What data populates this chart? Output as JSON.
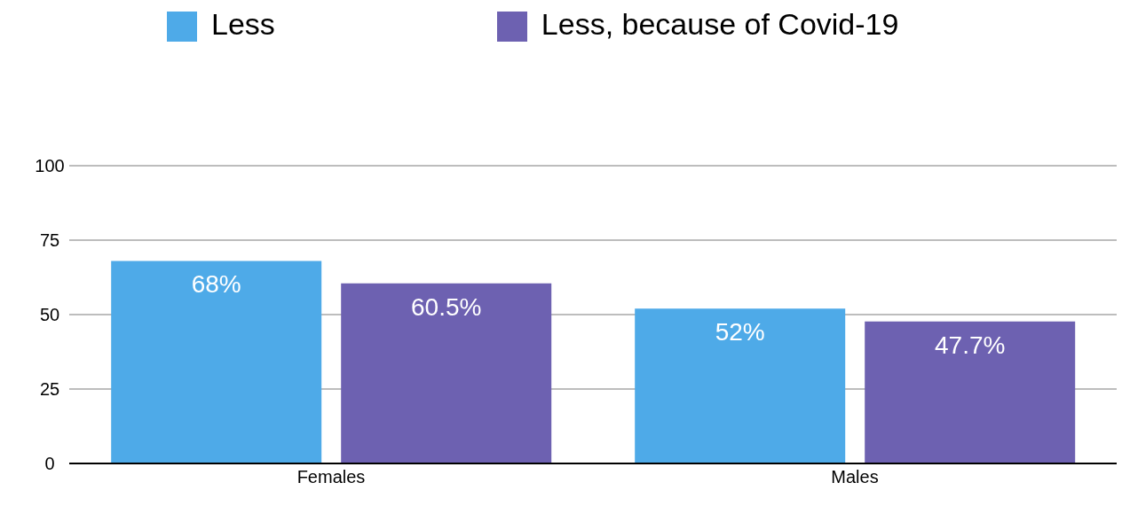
{
  "chart_data": {
    "type": "bar",
    "categories": [
      "Females",
      "Males"
    ],
    "series": [
      {
        "name": "Less",
        "color": "#4eaae8",
        "values": [
          68,
          52
        ],
        "value_labels": [
          "68%",
          "52%"
        ]
      },
      {
        "name": "Less, because of Covid-19",
        "color": "#6d61b1",
        "values": [
          60.5,
          47.7
        ],
        "value_labels": [
          "60.5%",
          "47.7%"
        ]
      }
    ],
    "ylim": [
      0,
      100
    ],
    "yticks": [
      0,
      25,
      50,
      75,
      100
    ],
    "grid": "y",
    "legend": "top"
  }
}
